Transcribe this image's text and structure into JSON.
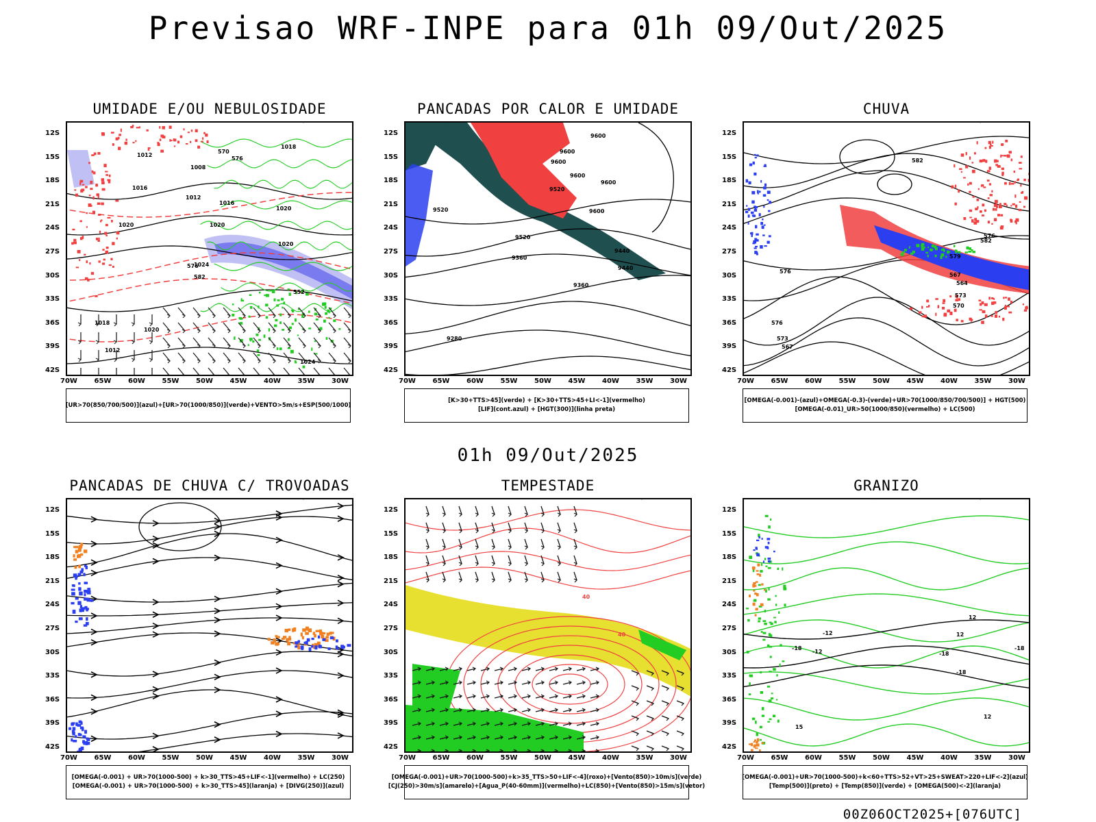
{
  "header": {
    "title": "Previsao WRF-INPE  para 01h 09/Out/2025",
    "mid_date": "01h 09/Out/2025",
    "footer": "00Z06OCT2025+[076UTC]"
  },
  "axes": {
    "lat_labels": [
      "12S",
      "15S",
      "18S",
      "21S",
      "24S",
      "27S",
      "30S",
      "33S",
      "36S",
      "39S",
      "42S"
    ],
    "lon_labels": [
      "70W",
      "65W",
      "60W",
      "55W",
      "50W",
      "45W",
      "40W",
      "35W",
      "30W"
    ]
  },
  "panels": [
    {
      "id": "umidade",
      "title": "UMIDADE E/OU NEBULOSIDADE",
      "legend": [
        "[UR>70(850/700/500)](azul)+[UR>70(1000/850)](verde)+VENTO>5m/s+ESP(500/1000)"
      ],
      "contour_labels": [
        "1018",
        "1012",
        "1008",
        "1016",
        "1012",
        "1016",
        "1020",
        "1020",
        "1020",
        "1024",
        "1020",
        "1018",
        "1020",
        "1012",
        "1024",
        "576",
        "576",
        "570",
        "582",
        "552"
      ]
    },
    {
      "id": "pancadas-calor",
      "title": "PANCADAS POR CALOR E UMIDADE",
      "legend": [
        "[K>30+TTS>45](verde) + [K>30+TTS>45+LI<-1](vermelho)",
        "[LIF](cont.azul) + [HGT(300)](linha preta)"
      ],
      "contour_labels": [
        "9600",
        "9600",
        "9600",
        "9600",
        "9520",
        "9600",
        "9600",
        "9520",
        "9520",
        "9440",
        "9440",
        "9360",
        "9360",
        "9280"
      ]
    },
    {
      "id": "chuva",
      "title": "CHUVA",
      "legend": [
        "[OMEGA(-0.001)-(azul)+OMEGA(-0.3)-(verde)+UR>70(1000/850/700/500)] + HGT(500)",
        "[OMEGA(-0.01)_UR>50(1000/850)(vermelho) + LC(500)"
      ],
      "contour_labels": [
        "582",
        "576",
        "582",
        "579",
        "576",
        "573",
        "570",
        "567",
        "564",
        "573",
        "570",
        "567",
        "576"
      ]
    },
    {
      "id": "pancadas-trovoadas",
      "title": "PANCADAS DE CHUVA C/ TROVOADAS",
      "legend": [
        "[OMEGA(-0.001) + UR>70(1000-500) + k>30_TTS>45+LIF<-1](vermelho) + LC(250)",
        "[OMEGA(-0.001) + UR>70(1000-500) + k>30_TTS>45](laranja) + [DIVG(250)](azul)"
      ],
      "contour_labels": []
    },
    {
      "id": "tempestade",
      "title": "TEMPESTADE",
      "legend": [
        "[OMEGA(-0.001)+UR>70(1000-500)+k>35_TTS>50+LIF<-4](roxo)+[Vento(850)>10m/s](verde)",
        "[CJ(250)>30m/s](amarelo)+[Agua_P(40-60mm)](vermelho)+LC(850)+[Vento(850)>15m/s](vetor)"
      ],
      "contour_labels": [
        "40",
        "40"
      ]
    },
    {
      "id": "granizo",
      "title": "GRANIZO",
      "legend": [
        "[OMEGA(-0.001)+UR>70(1000-500)+k<60+TTS>52+VT>25+SWEAT>220+LIF<-2](azul)",
        "[Temp(500)](preto) + [Temp(850)](verde) + [OMEGA(500)<-2](laranja)"
      ],
      "contour_labels": [
        "-12",
        "-12",
        "-18",
        "-18",
        "-18",
        "-18",
        "12",
        "12",
        "15",
        "12"
      ]
    }
  ],
  "colors": {
    "coast": "#000000",
    "contour_black": "#000000",
    "humidity_blue": "#7b7bf0",
    "humidity_blue_light": "#c0c0f5",
    "green": "#22cc22",
    "red": "#f04040",
    "dark_teal": "#1f4f4f",
    "blue": "#2b3ff0",
    "orange": "#f08020",
    "yellow": "#e8e030"
  }
}
